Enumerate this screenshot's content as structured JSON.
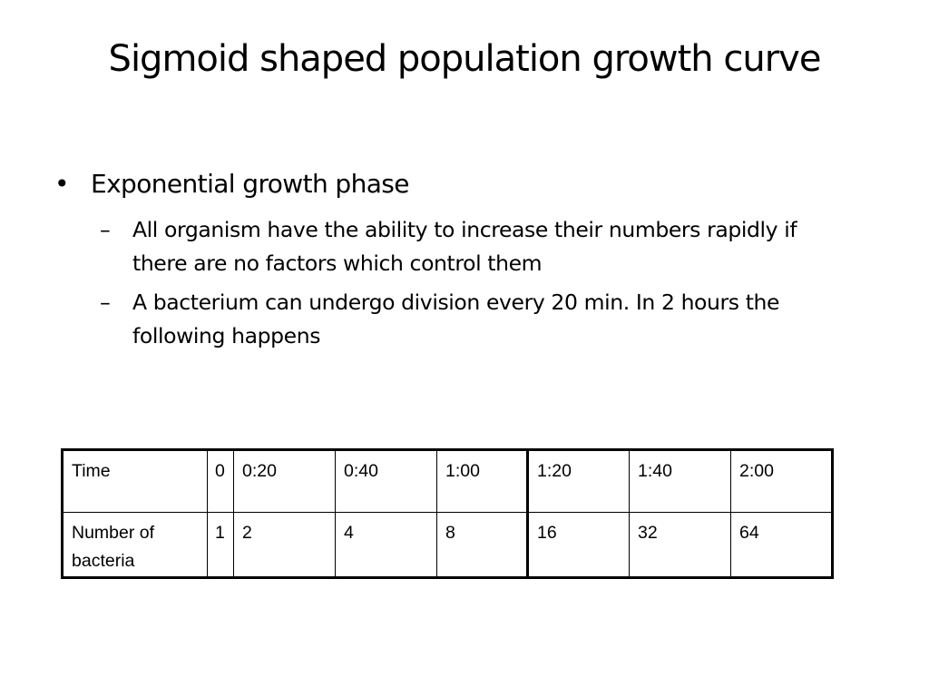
{
  "slide": {
    "title": "Sigmoid shaped population growth curve",
    "bullets": [
      {
        "marker": "•",
        "text": "Exponential growth phase",
        "subitems": [
          {
            "marker": "–",
            "text": "All organism have the ability to increase their numbers rapidly if there are no factors which control them"
          },
          {
            "marker": "–",
            "text": "A bacterium can undergo division every 20 min. In 2 hours the following happens"
          }
        ]
      }
    ]
  },
  "table": {
    "rows": [
      {
        "label": "Time",
        "cells": [
          "0",
          "0:20",
          "0:40",
          "1:00",
          "1:20",
          "1:40",
          "2:00"
        ]
      },
      {
        "label": "Number of bacteria",
        "cells": [
          "1",
          "2",
          "4",
          "8",
          "16",
          "32",
          "64"
        ]
      }
    ]
  }
}
